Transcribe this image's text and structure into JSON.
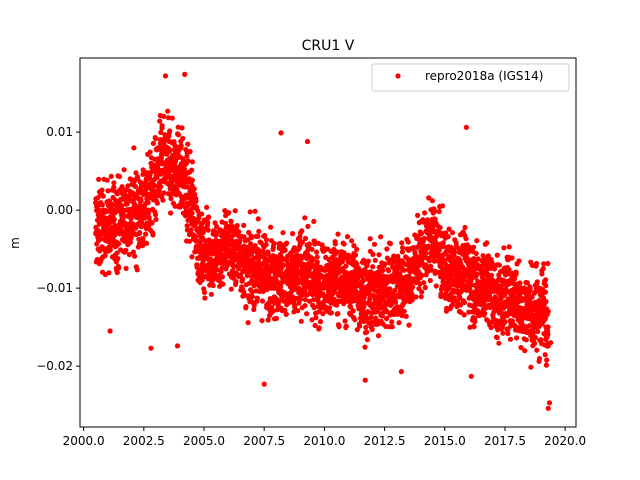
{
  "chart_data": {
    "type": "scatter",
    "title": "CRU1 V",
    "xlabel": "",
    "ylabel": "m",
    "xlim": [
      1999.85,
      2020.45
    ],
    "ylim": [
      -0.0278,
      0.0195
    ],
    "xticks": [
      2000.0,
      2002.5,
      2005.0,
      2007.5,
      2010.0,
      2012.5,
      2015.0,
      2017.5,
      2020.0
    ],
    "xtick_labels": [
      "2000.0",
      "2002.5",
      "2005.0",
      "2007.5",
      "2010.0",
      "2012.5",
      "2015.0",
      "2017.5",
      "2020.0"
    ],
    "yticks": [
      -0.02,
      -0.01,
      0.0,
      0.01
    ],
    "ytick_labels": [
      "−0.02",
      "−0.01",
      "0.00",
      "0.01"
    ],
    "grid": false,
    "legend_position": "top-right",
    "series": [
      {
        "name": "repro2018a (IGS14)",
        "color": "#ff0000",
        "marker": "circle",
        "x": [
          2000.5,
          2000.6,
          2000.7,
          2000.8,
          2000.9,
          2001.0,
          2001.1,
          2001.2,
          2001.3,
          2001.4,
          2001.5,
          2001.6,
          2001.7,
          2001.8,
          2001.9,
          2002.0,
          2002.1,
          2002.2,
          2002.3,
          2002.4,
          2002.5,
          2002.6,
          2002.7,
          2002.8,
          2002.9,
          2003.0,
          2003.1,
          2003.2,
          2003.3,
          2003.4,
          2003.5,
          2003.6,
          2003.7,
          2003.8,
          2003.9,
          2004.0,
          2004.1,
          2004.2,
          2004.3,
          2004.4,
          2004.5,
          2004.6,
          2004.7,
          2004.8,
          2004.9,
          2005.0,
          2005.2,
          2005.4,
          2005.6,
          2005.8,
          2006.0,
          2006.2,
          2006.4,
          2006.6,
          2006.8,
          2007.0,
          2007.2,
          2007.4,
          2007.6,
          2007.8,
          2008.0,
          2008.2,
          2008.4,
          2008.6,
          2008.8,
          2009.0,
          2009.2,
          2009.4,
          2009.6,
          2009.8,
          2010.0,
          2010.2,
          2010.4,
          2010.6,
          2010.8,
          2011.0,
          2011.2,
          2011.4,
          2011.6,
          2011.8,
          2012.0,
          2012.2,
          2012.4,
          2012.6,
          2012.8,
          2013.0,
          2013.2,
          2013.4,
          2013.6,
          2013.8,
          2014.0,
          2014.2,
          2014.4,
          2014.6,
          2014.8,
          2015.0,
          2015.2,
          2015.4,
          2015.6,
          2015.8,
          2016.0,
          2016.2,
          2016.4,
          2016.6,
          2016.8,
          2017.0,
          2017.2,
          2017.4,
          2017.6,
          2017.8,
          2018.0,
          2018.2,
          2018.4,
          2018.6,
          2018.8,
          2019.0,
          2019.1,
          2019.2,
          2019.3,
          2019.4
        ],
        "y": [
          -0.003,
          -0.005,
          0.002,
          -0.006,
          -0.001,
          -0.004,
          0.001,
          -0.006,
          -0.002,
          -0.008,
          -0.003,
          0.003,
          -0.004,
          0.001,
          -0.002,
          0.002,
          -0.003,
          0.004,
          -0.001,
          0.003,
          -0.002,
          0.004,
          0.0,
          0.006,
          0.002,
          0.005,
          0.008,
          0.003,
          0.009,
          0.004,
          0.006,
          0.002,
          0.007,
          0.003,
          0.005,
          0.004,
          0.001,
          0.006,
          -0.002,
          -0.004,
          -0.006,
          -0.002,
          -0.007,
          -0.004,
          -0.008,
          -0.005,
          -0.007,
          -0.004,
          -0.009,
          -0.006,
          -0.005,
          -0.008,
          -0.006,
          -0.009,
          -0.006,
          -0.007,
          -0.005,
          -0.01,
          -0.007,
          -0.009,
          -0.006,
          -0.008,
          -0.011,
          -0.007,
          -0.009,
          -0.008,
          -0.006,
          -0.01,
          -0.008,
          -0.011,
          -0.009,
          -0.007,
          -0.01,
          -0.008,
          -0.012,
          -0.009,
          -0.007,
          -0.011,
          -0.009,
          -0.013,
          -0.01,
          -0.008,
          -0.011,
          -0.009,
          -0.012,
          -0.008,
          -0.01,
          -0.007,
          -0.009,
          -0.006,
          -0.004,
          -0.006,
          -0.002,
          -0.005,
          -0.003,
          -0.008,
          -0.01,
          -0.007,
          -0.011,
          -0.009,
          -0.01,
          -0.008,
          -0.012,
          -0.009,
          -0.011,
          -0.009,
          -0.007,
          -0.011,
          -0.008,
          -0.012,
          -0.01,
          -0.013,
          -0.011,
          -0.012,
          -0.01,
          -0.014,
          -0.012,
          -0.015,
          -0.013,
          -0.017
        ],
        "note_outliers": {
          "x": [
            2003.4,
            2004.2,
            2008.2,
            2009.3,
            2015.9,
            2001.1,
            2002.8,
            2003.9,
            2007.5,
            2011.7,
            2013.2,
            2016.1,
            2019.3,
            2019.35
          ],
          "y": [
            0.0172,
            0.0174,
            0.0099,
            0.0088,
            0.0106,
            -0.0155,
            -0.0177,
            -0.0174,
            -0.0223,
            -0.0218,
            -0.0207,
            -0.0213,
            -0.0254,
            -0.0247
          ]
        },
        "envelope": {
          "x": [
            2000.5,
            2001.0,
            2001.5,
            2002.0,
            2002.5,
            2003.0,
            2003.5,
            2004.0,
            2004.4,
            2004.8,
            2005.5,
            2006.5,
            2007.5,
            2008.5,
            2009.5,
            2010.5,
            2011.5,
            2012.5,
            2013.5,
            2014.0,
            2014.5,
            2015.0,
            2016.0,
            2017.0,
            2018.0,
            2018.8,
            2019.3
          ],
          "mean": [
            -0.002,
            -0.003,
            -0.002,
            -0.001,
            0.0,
            0.003,
            0.005,
            0.004,
            0.001,
            -0.004,
            -0.006,
            -0.006,
            -0.007,
            -0.008,
            -0.008,
            -0.009,
            -0.01,
            -0.01,
            -0.009,
            -0.005,
            -0.004,
            -0.008,
            -0.009,
            -0.01,
            -0.011,
            -0.012,
            -0.013
          ],
          "spread": [
            0.0065,
            0.0065,
            0.0065,
            0.007,
            0.0065,
            0.0065,
            0.0065,
            0.0065,
            0.006,
            0.0055,
            0.0055,
            0.0055,
            0.006,
            0.006,
            0.006,
            0.006,
            0.006,
            0.006,
            0.006,
            0.0055,
            0.0055,
            0.006,
            0.006,
            0.006,
            0.006,
            0.0065,
            0.007
          ]
        }
      }
    ]
  }
}
